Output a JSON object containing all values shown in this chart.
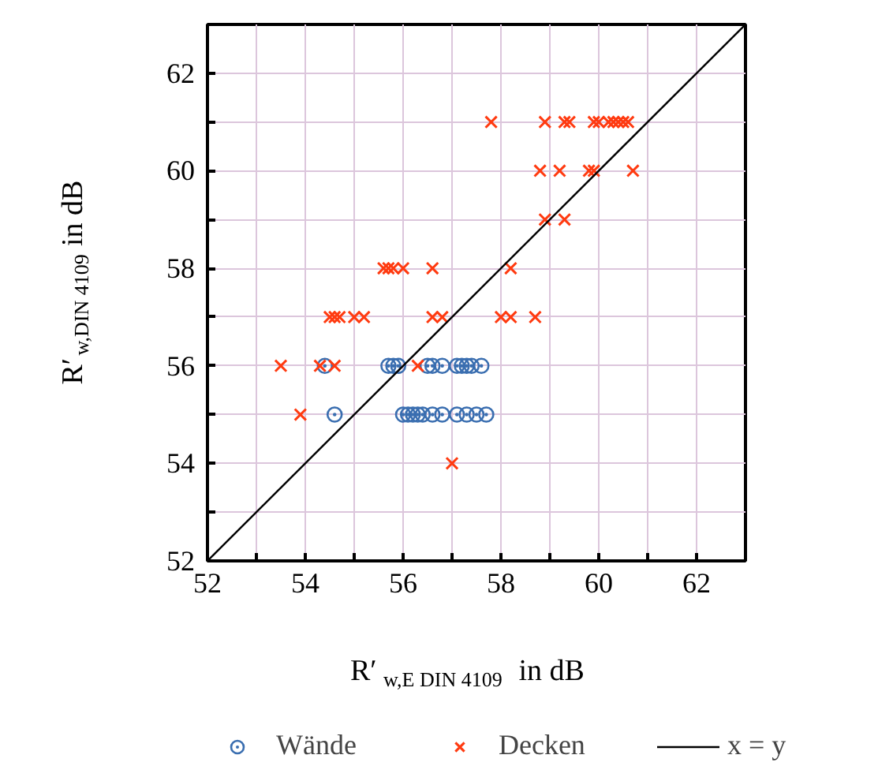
{
  "chart_data": {
    "type": "scatter",
    "xlabel": "R′$_{w,E DIN 4109}$ in dB",
    "ylabel": "R′$_{w,DIN 4109}$ in dB",
    "xlim": [
      52,
      63
    ],
    "ylim": [
      52,
      63
    ],
    "xticks": [
      52,
      {
        "value": 53,
        "label": null
      },
      54,
      {
        "value": 55,
        "label": null
      },
      56,
      {
        "value": 57,
        "label": null
      },
      58,
      {
        "value": 59,
        "label": null
      },
      60,
      {
        "value": 61,
        "label": null
      },
      62,
      {
        "value": 63,
        "label": null
      }
    ],
    "yticks": [
      52,
      {
        "value": 53,
        "label": null
      },
      54,
      {
        "value": 55,
        "label": null
      },
      56,
      {
        "value": 57,
        "label": null
      },
      58,
      {
        "value": 59,
        "label": null
      },
      60,
      {
        "value": 61,
        "label": null
      },
      62,
      {
        "value": 63,
        "label": null
      }
    ],
    "grid": true,
    "legend": "bottom",
    "series": [
      {
        "name": "Wände",
        "color": "#3a6eb0",
        "marker": "circle",
        "x": [
          54.4,
          55.7,
          55.8,
          55.9,
          56.5,
          56.6,
          56.8,
          57.1,
          57.2,
          57.3,
          57.4,
          57.6,
          54.6,
          56.0,
          56.1,
          56.2,
          56.3,
          56.4,
          56.6,
          56.8,
          57.1,
          57.3,
          57.5,
          57.7
        ],
        "values": [
          56,
          56,
          56,
          56,
          56,
          56,
          56,
          56,
          56,
          56,
          56,
          56,
          55,
          55,
          55,
          55,
          55,
          55,
          55,
          55,
          55,
          55,
          55,
          55
        ]
      },
      {
        "name": "Decken",
        "color": "#ff3a10",
        "marker": "cross",
        "x": [
          57.8,
          58.9,
          59.3,
          59.4,
          59.9,
          60.0,
          60.2,
          60.3,
          60.4,
          60.5,
          60.6,
          58.8,
          59.2,
          59.8,
          59.9,
          60.7,
          58.9,
          59.3,
          55.6,
          55.7,
          55.8,
          56.0,
          56.6,
          58.2,
          54.5,
          54.6,
          54.7,
          55.0,
          55.2,
          56.6,
          56.8,
          58.0,
          58.2,
          58.7,
          53.5,
          54.3,
          54.6,
          56.3,
          53.9,
          57.0
        ],
        "values": [
          61,
          61,
          61,
          61,
          61,
          61,
          61,
          61,
          61,
          61,
          61,
          60,
          60,
          60,
          60,
          60,
          59,
          59,
          58,
          58,
          58,
          58,
          58,
          58,
          57,
          57,
          57,
          57,
          57,
          57,
          57,
          57,
          57,
          57,
          56,
          56,
          56,
          56,
          55,
          54
        ]
      },
      {
        "name": "x = y",
        "type": "line",
        "color": "#000000",
        "marker": "none",
        "x": [
          52,
          63
        ],
        "values": [
          52,
          63
        ]
      }
    ]
  }
}
